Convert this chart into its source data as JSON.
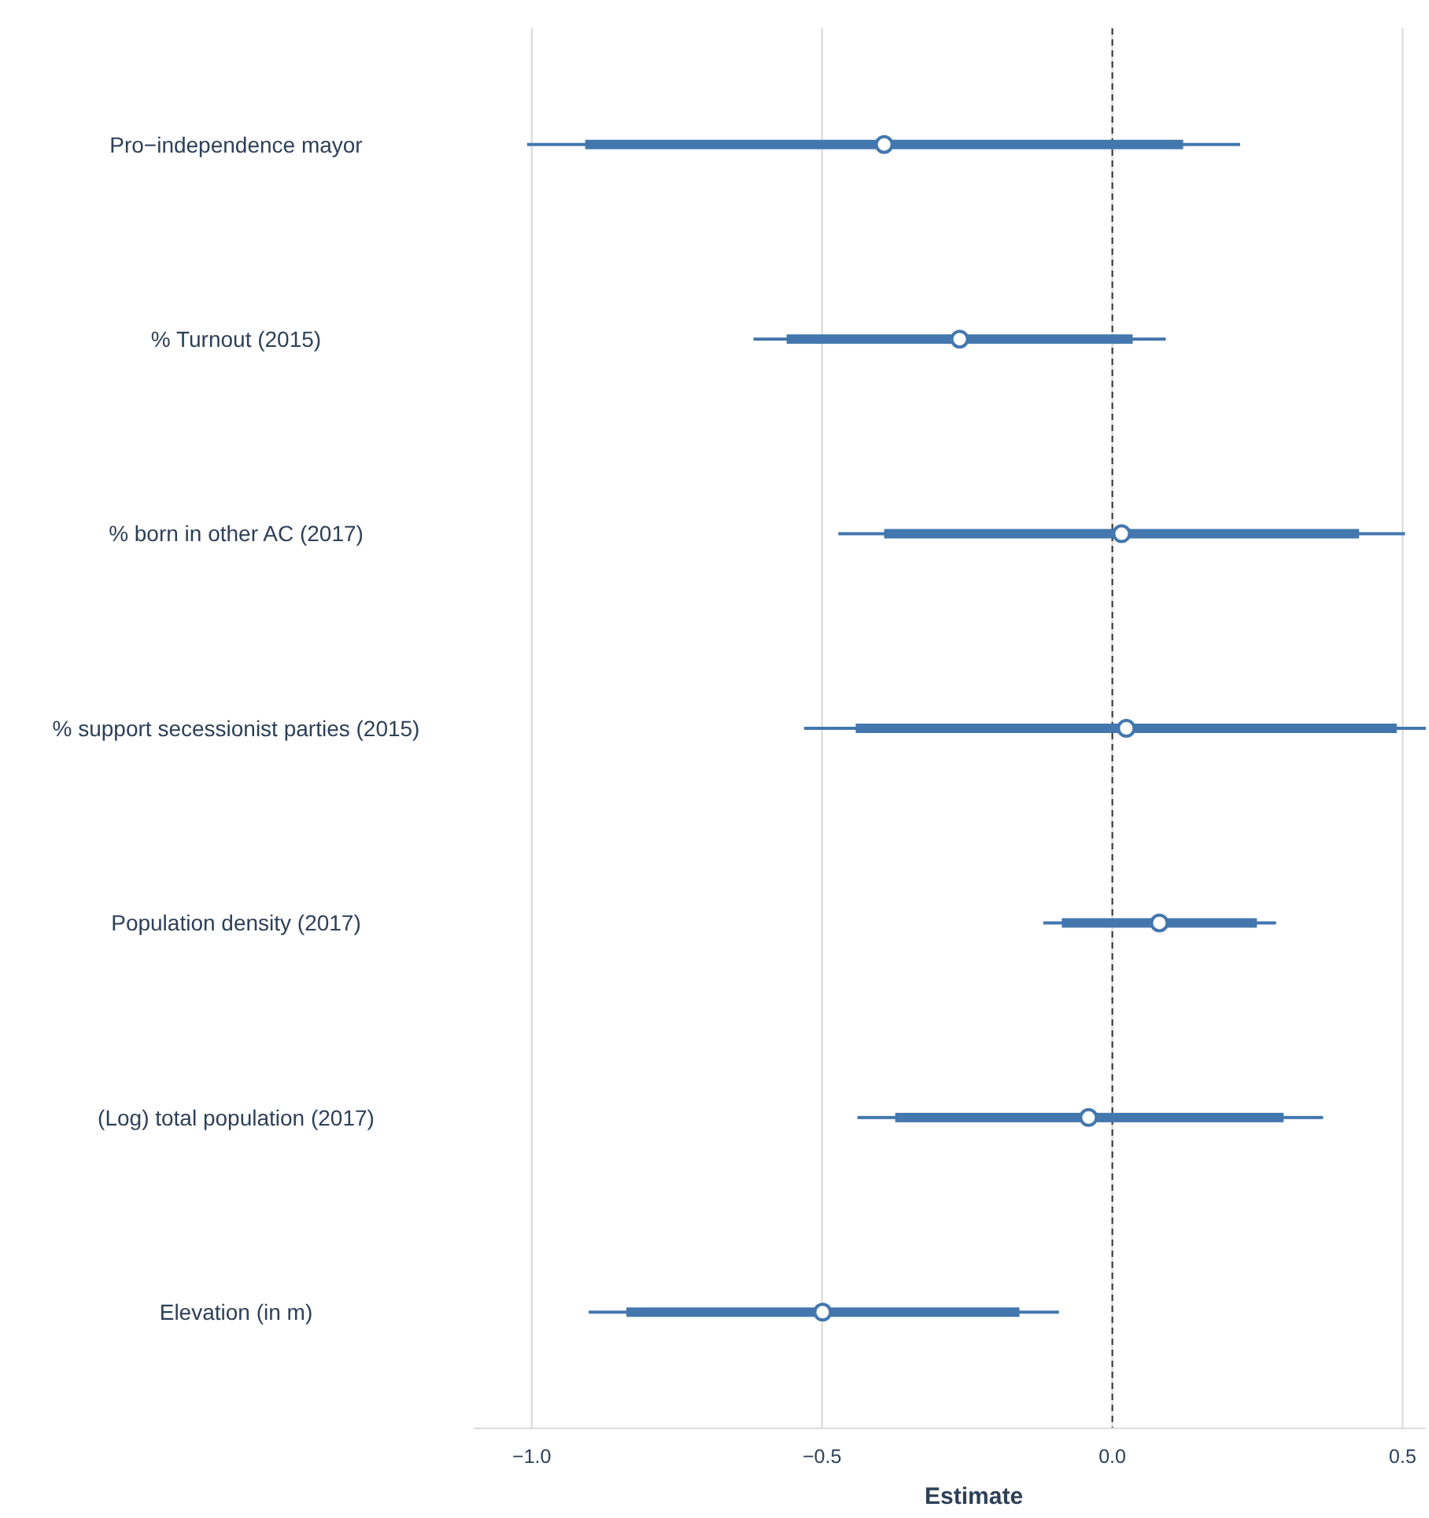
{
  "chart_data": {
    "type": "bar",
    "orientation": "horizontal",
    "xlabel": "Estimate",
    "categories": [
      "Pro−independence mayor",
      "% Turnout (2015)",
      "% born in other AC (2017)",
      "% support secessionist parties (2015)",
      "Population density (2017)",
      "(Log) total population (2017)",
      "Elevation (in m)"
    ],
    "series": [
      {
        "color": "#4377ae",
        "base": [
          -0.908,
          -0.561,
          -0.393,
          -0.442,
          -0.087,
          -0.374,
          -0.837
        ],
        "values": [
          1.03,
          0.596,
          0.818,
          0.932,
          0.336,
          0.669,
          0.677
        ]
      },
      {
        "type": "bar",
        "color": "#4377ae",
        "base": [
          -1.008,
          -0.618,
          -0.472,
          -0.531,
          -0.119,
          -0.439,
          -0.902
        ],
        "values": [
          1.228,
          0.71,
          0.976,
          1.071,
          0.401,
          0.802,
          0.81
        ]
      },
      {
        "type": "scatter",
        "color": "#4377ae",
        "values": [
          -0.393,
          -0.263,
          0.016,
          0.024,
          0.081,
          -0.041,
          -0.499
        ]
      }
    ],
    "xlim": [
      -1.1,
      0.54
    ],
    "xticks": [
      {
        "value": -1,
        "label": "−1.0"
      },
      {
        "value": -0.5,
        "label": "−0.5"
      },
      {
        "value": 0,
        "label": "0.0"
      },
      {
        "value": 0.5,
        "label": "0.5"
      }
    ],
    "grid": "x",
    "marker": "circle",
    "ref_lines": [
      {
        "axis": "x",
        "value": 0,
        "line_style": "dashed",
        "color": "#333333"
      }
    ]
  }
}
